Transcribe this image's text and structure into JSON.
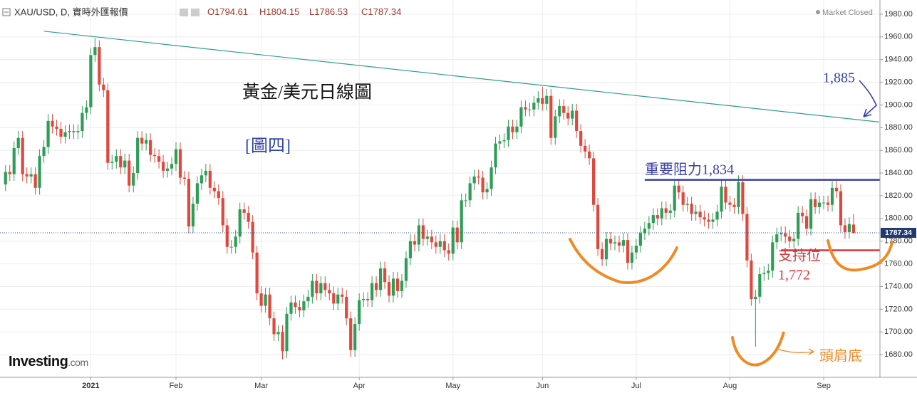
{
  "chart_data": {
    "type": "candlestick",
    "header": {
      "symbol": "XAU/USD, D, 實時外匯報價",
      "readout": [
        "O1794.61",
        "H1804.15",
        "L1786.53",
        "C1787.34"
      ],
      "status": "Market Closed"
    },
    "title": "黃金/美元日線圖",
    "subtitle": "[圖四]",
    "logo": {
      "name": "Investing",
      "suffix": ".com"
    },
    "up_color": "#2e9e57",
    "down_color": "#e0483e",
    "open": [
      1830,
      1841,
      1839,
      1862,
      1871,
      1839,
      1837,
      1839,
      1827,
      1855,
      1863,
      1886,
      1881,
      1879,
      1872,
      1876,
      1877,
      1876,
      1877,
      1893,
      1898,
      1944,
      1951,
      1918,
      1913,
      1849,
      1850,
      1855,
      1845,
      1851,
      1829,
      1840,
      1871,
      1866,
      1869,
      1856,
      1855,
      1850,
      1842,
      1844,
      1848,
      1861,
      1836,
      1835,
      1793,
      1813,
      1831,
      1838,
      1842,
      1827,
      1824,
      1818,
      1794,
      1775,
      1775,
      1784,
      1808,
      1805,
      1797,
      1770,
      1734,
      1723,
      1733,
      1712,
      1698,
      1700,
      1683,
      1716,
      1726,
      1722,
      1719,
      1727,
      1731,
      1745,
      1734,
      1743,
      1737,
      1734,
      1725,
      1733,
      1731,
      1712,
      1684,
      1707,
      1728,
      1729,
      1728,
      1743,
      1737,
      1756,
      1744,
      1732,
      1747,
      1736,
      1745,
      1765,
      1780,
      1777,
      1794,
      1782,
      1784,
      1779,
      1775,
      1780,
      1772,
      1769,
      1792,
      1779,
      1816,
      1816,
      1831,
      1837,
      1836,
      1823,
      1826,
      1845,
      1866,
      1868,
      1869,
      1881,
      1876,
      1881,
      1898,
      1896,
      1896,
      1902,
      1906,
      1901,
      1908,
      1871,
      1890,
      1899,
      1893,
      1888,
      1895,
      1877,
      1864,
      1859,
      1853,
      1812,
      1773,
      1764,
      1782,
      1778,
      1779,
      1776,
      1781,
      1761,
      1770,
      1776,
      1787,
      1791,
      1796,
      1803,
      1800,
      1809,
      1805,
      1807,
      1829,
      1823,
      1812,
      1813,
      1804,
      1806,
      1801,
      1799,
      1797,
      1799,
      1806,
      1828,
      1814,
      1812,
      1810,
      1832,
      1804,
      1763,
      1729,
      1731,
      1751,
      1752,
      1754,
      1779,
      1786,
      1787,
      1784,
      1780,
      1782,
      1805,
      1802,
      1791,
      1817,
      1810,
      1814,
      1814,
      1812,
      1827,
      1824,
      1794,
      1788,
      1794.61
    ],
    "high": [
      1847,
      1847,
      1868,
      1877,
      1877,
      1845,
      1845,
      1845,
      1861,
      1869,
      1892,
      1892,
      1887,
      1885,
      1882,
      1883,
      1883,
      1883,
      1899,
      1904,
      1950,
      1959,
      1957,
      1924,
      1919,
      1856,
      1861,
      1861,
      1857,
      1857,
      1846,
      1877,
      1877,
      1875,
      1875,
      1862,
      1861,
      1856,
      1850,
      1854,
      1867,
      1867,
      1842,
      1841,
      1819,
      1837,
      1844,
      1848,
      1848,
      1833,
      1830,
      1824,
      1800,
      1781,
      1790,
      1814,
      1814,
      1811,
      1803,
      1776,
      1740,
      1739,
      1739,
      1718,
      1706,
      1706,
      1722,
      1732,
      1732,
      1728,
      1733,
      1737,
      1751,
      1751,
      1749,
      1749,
      1743,
      1740,
      1739,
      1739,
      1737,
      1718,
      1713,
      1734,
      1735,
      1735,
      1749,
      1749,
      1762,
      1762,
      1750,
      1753,
      1753,
      1751,
      1771,
      1786,
      1786,
      1800,
      1800,
      1790,
      1790,
      1785,
      1786,
      1786,
      1778,
      1798,
      1798,
      1822,
      1822,
      1837,
      1843,
      1843,
      1842,
      1832,
      1851,
      1872,
      1874,
      1875,
      1887,
      1887,
      1887,
      1904,
      1904,
      1902,
      1908,
      1912,
      1916,
      1914,
      1914,
      1896,
      1905,
      1905,
      1899,
      1901,
      1901,
      1883,
      1870,
      1865,
      1859,
      1818,
      1779,
      1788,
      1788,
      1785,
      1785,
      1787,
      1787,
      1776,
      1782,
      1793,
      1797,
      1802,
      1809,
      1809,
      1815,
      1815,
      1813,
      1835,
      1835,
      1829,
      1819,
      1819,
      1812,
      1812,
      1807,
      1805,
      1805,
      1812,
      1834,
      1834,
      1820,
      1818,
      1838,
      1838,
      1810,
      1769,
      1737,
      1757,
      1758,
      1760,
      1785,
      1792,
      1793,
      1793,
      1790,
      1788,
      1811,
      1811,
      1808,
      1823,
      1823,
      1820,
      1820,
      1820,
      1833,
      1834,
      1830,
      1800,
      1801,
      1804.15
    ],
    "low": [
      1824,
      1833,
      1833,
      1856,
      1833,
      1831,
      1831,
      1821,
      1821,
      1849,
      1857,
      1875,
      1873,
      1866,
      1866,
      1870,
      1870,
      1870,
      1871,
      1887,
      1892,
      1938,
      1912,
      1907,
      1843,
      1843,
      1844,
      1839,
      1839,
      1823,
      1823,
      1834,
      1860,
      1860,
      1850,
      1849,
      1844,
      1836,
      1836,
      1838,
      1842,
      1830,
      1829,
      1787,
      1787,
      1807,
      1825,
      1832,
      1821,
      1818,
      1812,
      1788,
      1769,
      1769,
      1769,
      1778,
      1799,
      1791,
      1764,
      1728,
      1717,
      1717,
      1706,
      1692,
      1692,
      1676,
      1677,
      1710,
      1716,
      1713,
      1713,
      1721,
      1725,
      1728,
      1728,
      1731,
      1728,
      1719,
      1719,
      1725,
      1706,
      1678,
      1678,
      1701,
      1722,
      1722,
      1722,
      1731,
      1731,
      1738,
      1726,
      1726,
      1730,
      1730,
      1739,
      1759,
      1771,
      1771,
      1776,
      1776,
      1773,
      1769,
      1769,
      1766,
      1763,
      1763,
      1773,
      1773,
      1810,
      1810,
      1825,
      1830,
      1817,
      1817,
      1820,
      1839,
      1860,
      1862,
      1863,
      1870,
      1870,
      1875,
      1890,
      1890,
      1890,
      1896,
      1895,
      1895,
      1865,
      1865,
      1884,
      1887,
      1882,
      1882,
      1871,
      1858,
      1853,
      1847,
      1806,
      1767,
      1758,
      1758,
      1772,
      1772,
      1770,
      1770,
      1755,
      1755,
      1764,
      1770,
      1781,
      1785,
      1790,
      1794,
      1794,
      1799,
      1799,
      1801,
      1817,
      1806,
      1806,
      1798,
      1798,
      1795,
      1793,
      1791,
      1791,
      1793,
      1800,
      1808,
      1806,
      1804,
      1804,
      1798,
      1757,
      1723,
      1687,
      1725,
      1745,
      1746,
      1748,
      1773,
      1780,
      1778,
      1774,
      1774,
      1776,
      1796,
      1785,
      1785,
      1804,
      1804,
      1808,
      1806,
      1806,
      1818,
      1788,
      1782,
      1782,
      1786.53
    ],
    "close": [
      1841,
      1839,
      1862,
      1871,
      1839,
      1837,
      1839,
      1827,
      1855,
      1863,
      1886,
      1881,
      1879,
      1872,
      1876,
      1877,
      1876,
      1877,
      1893,
      1898,
      1944,
      1951,
      1918,
      1913,
      1849,
      1850,
      1855,
      1845,
      1851,
      1829,
      1840,
      1871,
      1866,
      1869,
      1856,
      1855,
      1850,
      1842,
      1844,
      1848,
      1861,
      1836,
      1835,
      1793,
      1813,
      1831,
      1838,
      1842,
      1827,
      1824,
      1818,
      1794,
      1775,
      1775,
      1784,
      1808,
      1805,
      1797,
      1770,
      1734,
      1723,
      1733,
      1712,
      1698,
      1700,
      1683,
      1716,
      1726,
      1722,
      1719,
      1727,
      1731,
      1745,
      1734,
      1743,
      1737,
      1734,
      1725,
      1733,
      1731,
      1712,
      1684,
      1707,
      1728,
      1729,
      1728,
      1743,
      1737,
      1756,
      1744,
      1732,
      1747,
      1736,
      1745,
      1765,
      1780,
      1777,
      1794,
      1782,
      1784,
      1779,
      1775,
      1780,
      1772,
      1769,
      1792,
      1779,
      1816,
      1816,
      1831,
      1837,
      1836,
      1823,
      1826,
      1845,
      1866,
      1868,
      1869,
      1881,
      1876,
      1881,
      1898,
      1896,
      1896,
      1902,
      1906,
      1901,
      1908,
      1871,
      1890,
      1899,
      1893,
      1888,
      1895,
      1877,
      1864,
      1859,
      1853,
      1812,
      1773,
      1764,
      1782,
      1778,
      1779,
      1776,
      1781,
      1761,
      1770,
      1776,
      1787,
      1791,
      1796,
      1803,
      1800,
      1809,
      1805,
      1807,
      1829,
      1823,
      1812,
      1813,
      1804,
      1806,
      1801,
      1799,
      1797,
      1799,
      1806,
      1828,
      1814,
      1812,
      1810,
      1832,
      1804,
      1763,
      1729,
      1731,
      1751,
      1752,
      1754,
      1779,
      1786,
      1787,
      1784,
      1780,
      1782,
      1805,
      1802,
      1791,
      1817,
      1810,
      1814,
      1814,
      1812,
      1827,
      1824,
      1794,
      1788,
      1795,
      1787.34
    ],
    "xlim": [
      -1.3,
      205.2
    ],
    "xticks": [
      {
        "value": 20,
        "label": "2021"
      },
      {
        "value": 40,
        "label": "Feb"
      },
      {
        "value": 60,
        "label": "Mar"
      },
      {
        "value": 83,
        "label": "Apr"
      },
      {
        "value": 105,
        "label": "May"
      },
      {
        "value": 126,
        "label": "Jun"
      },
      {
        "value": 148,
        "label": "Jul"
      },
      {
        "value": 170,
        "label": "Aug"
      },
      {
        "value": 192,
        "label": "Sep"
      }
    ],
    "ylim": [
      1660,
      1992.5
    ],
    "yticks": [
      {
        "value": 1680,
        "label": "1680.00"
      },
      {
        "value": 1700,
        "label": "1700.00"
      },
      {
        "value": 1720,
        "label": "1720.00"
      },
      {
        "value": 1740,
        "label": "1740.00"
      },
      {
        "value": 1760,
        "label": "1760.00"
      },
      {
        "value": 1780,
        "label": "1780.00"
      },
      {
        "value": 1800,
        "label": "1800.00"
      },
      {
        "value": 1820,
        "label": "1820.00"
      },
      {
        "value": 1840,
        "label": "1840.00"
      },
      {
        "value": 1860,
        "label": "1860.00"
      },
      {
        "value": 1880,
        "label": "1880.00"
      },
      {
        "value": 1900,
        "label": "1900.00"
      },
      {
        "value": 1920,
        "label": "1920.00"
      },
      {
        "value": 1940,
        "label": "1940.00"
      },
      {
        "value": 1960,
        "label": "1960.00"
      },
      {
        "value": 1980,
        "label": "1980.00"
      }
    ],
    "grid": true,
    "last_price": 1787.34,
    "trendline": {
      "x": [
        9,
        205
      ],
      "y": [
        1965,
        1885
      ],
      "color": "#2e9e8e",
      "label": "1,885"
    },
    "resistance": {
      "value": 1834,
      "x": [
        150,
        206
      ],
      "color": "#3a3fa8",
      "label": "重要阻力1,834"
    },
    "support": {
      "value": 1772,
      "x": [
        182,
        206
      ],
      "color": "#d9363e",
      "label": "支持位",
      "value_label": "1,772"
    },
    "pattern": {
      "label": "頭肩底",
      "color": "#f08a24"
    }
  }
}
